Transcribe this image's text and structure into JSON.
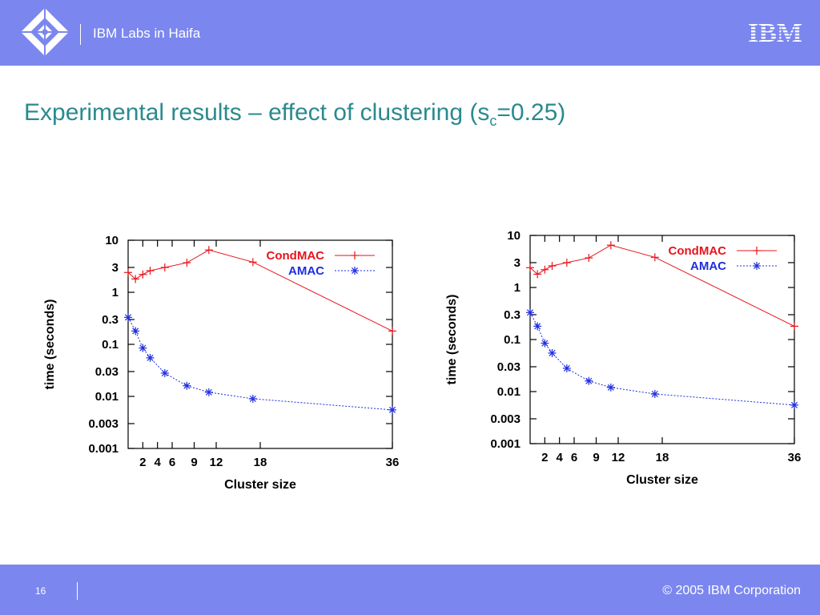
{
  "header": {
    "lab_name": "IBM Labs in Haifa",
    "brand_logo": "IBM",
    "logo_icon": "diamond-logo-icon",
    "brand_color": "#7b87ee"
  },
  "title": {
    "main": "Experimental results – effect of clustering (s",
    "subscript": "c",
    "suffix": "=0.25)"
  },
  "chart_data": [
    {
      "type": "line",
      "xlabel": "Cluster size",
      "ylabel": "time (seconds)",
      "yscale": "log",
      "ylim": [
        0.001,
        10
      ],
      "xlim": [
        0,
        36
      ],
      "x_ticks": [
        2,
        4,
        6,
        9,
        12,
        18,
        36
      ],
      "x_tick_labels": [
        "2",
        "4",
        "6",
        "9",
        "12",
        "18",
        "36"
      ],
      "y_ticks": [
        0.001,
        0.003,
        0.01,
        0.03,
        0.1,
        0.3,
        1,
        3,
        10
      ],
      "y_tick_labels": [
        "0.001",
        "0.003",
        "0.01",
        "0.03",
        "0.1",
        "0.3",
        "1",
        "3",
        "10"
      ],
      "legend_position": "top-right",
      "series": [
        {
          "name": "CondMAC",
          "color": "#e8141b",
          "marker": "plus",
          "line": "solid",
          "x": [
            0,
            1,
            2,
            3,
            5,
            8,
            11,
            17,
            36
          ],
          "y": [
            2.4,
            1.8,
            2.2,
            2.6,
            3.0,
            3.7,
            6.5,
            3.8,
            0.18
          ]
        },
        {
          "name": "AMAC",
          "color": "#1f2de0",
          "marker": "star",
          "line": "dotted",
          "x": [
            0,
            1,
            2,
            3,
            5,
            8,
            11,
            17,
            36
          ],
          "y": [
            0.33,
            0.18,
            0.085,
            0.055,
            0.028,
            0.016,
            0.012,
            0.009,
            0.0055
          ]
        }
      ]
    },
    {
      "type": "line",
      "xlabel": "Cluster size",
      "ylabel": "time (seconds)",
      "yscale": "log",
      "ylim": [
        0.001,
        10
      ],
      "xlim": [
        0,
        36
      ],
      "x_ticks": [
        2,
        4,
        6,
        9,
        12,
        18,
        36
      ],
      "x_tick_labels": [
        "2",
        "4",
        "6",
        "9",
        "12",
        "18",
        "36"
      ],
      "y_ticks": [
        0.001,
        0.003,
        0.01,
        0.03,
        0.1,
        0.3,
        1,
        3,
        10
      ],
      "y_tick_labels": [
        "0.001",
        "0.003",
        "0.01",
        "0.03",
        "0.1",
        "0.3",
        "1",
        "3",
        "10"
      ],
      "legend_position": "top-right",
      "series": [
        {
          "name": "CondMAC",
          "color": "#e8141b",
          "marker": "plus",
          "line": "solid",
          "x": [
            0,
            1,
            2,
            3,
            5,
            8,
            11,
            17,
            36
          ],
          "y": [
            2.4,
            1.8,
            2.2,
            2.6,
            3.0,
            3.7,
            6.5,
            3.8,
            0.18
          ]
        },
        {
          "name": "AMAC",
          "color": "#1f2de0",
          "marker": "star",
          "line": "dotted",
          "x": [
            0,
            1,
            2,
            3,
            5,
            8,
            11,
            17,
            36
          ],
          "y": [
            0.33,
            0.18,
            0.085,
            0.055,
            0.028,
            0.016,
            0.012,
            0.009,
            0.0055
          ]
        }
      ]
    }
  ],
  "footer": {
    "page_number": "16",
    "copyright": "© 2005 IBM Corporation"
  }
}
